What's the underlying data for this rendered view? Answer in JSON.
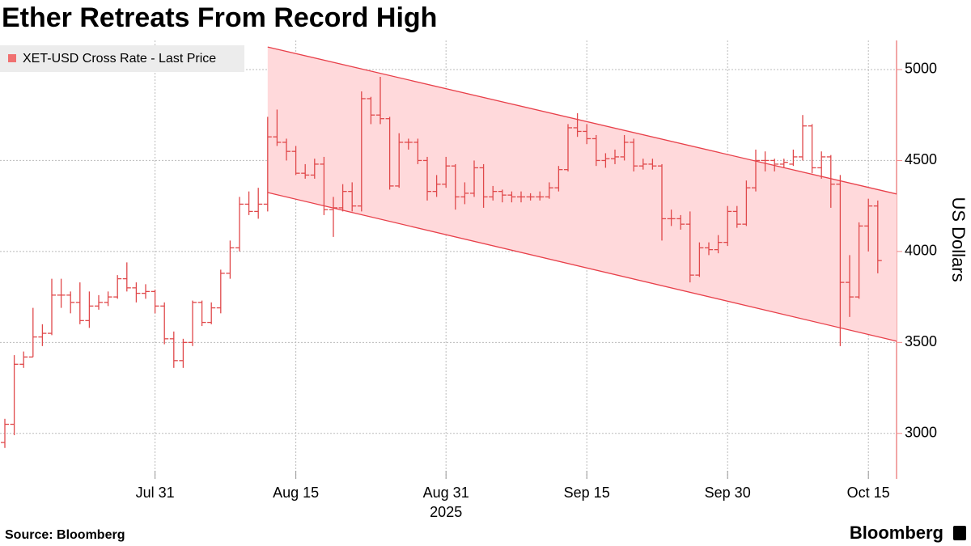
{
  "chart_data": {
    "type": "ohlc",
    "title": "Ether Retreats From Record High",
    "ylabel": "US Dollars",
    "year_label": "2025",
    "source": "Source: Bloomberg",
    "brand": "Bloomberg",
    "legend_position": "upper left",
    "grid": true,
    "xlim": [
      "2025-07-15",
      "2025-10-18"
    ],
    "xticks": [
      {
        "value": "2025-07-31",
        "label": "Jul 31"
      },
      {
        "value": "2025-08-15",
        "label": "Aug 15"
      },
      {
        "value": "2025-08-31",
        "label": "Aug 31"
      },
      {
        "value": "2025-09-15",
        "label": "Sep 15"
      },
      {
        "value": "2025-09-30",
        "label": "Sep 30"
      },
      {
        "value": "2025-10-15",
        "label": "Oct 15"
      }
    ],
    "ylim": [
      2750,
      5160
    ],
    "yticks": [
      3000,
      3500,
      4000,
      4500,
      5000
    ],
    "x": [
      "2025-07-15",
      "2025-07-16",
      "2025-07-17",
      "2025-07-18",
      "2025-07-19",
      "2025-07-20",
      "2025-07-21",
      "2025-07-22",
      "2025-07-23",
      "2025-07-24",
      "2025-07-25",
      "2025-07-26",
      "2025-07-27",
      "2025-07-28",
      "2025-07-29",
      "2025-07-30",
      "2025-07-31",
      "2025-08-01",
      "2025-08-02",
      "2025-08-03",
      "2025-08-04",
      "2025-08-05",
      "2025-08-06",
      "2025-08-07",
      "2025-08-08",
      "2025-08-09",
      "2025-08-10",
      "2025-08-11",
      "2025-08-12",
      "2025-08-13",
      "2025-08-14",
      "2025-08-15",
      "2025-08-16",
      "2025-08-17",
      "2025-08-18",
      "2025-08-19",
      "2025-08-20",
      "2025-08-21",
      "2025-08-22",
      "2025-08-23",
      "2025-08-24",
      "2025-08-25",
      "2025-08-26",
      "2025-08-27",
      "2025-08-28",
      "2025-08-29",
      "2025-08-30",
      "2025-08-31",
      "2025-09-01",
      "2025-09-02",
      "2025-09-03",
      "2025-09-04",
      "2025-09-05",
      "2025-09-06",
      "2025-09-07",
      "2025-09-08",
      "2025-09-09",
      "2025-09-10",
      "2025-09-11",
      "2025-09-12",
      "2025-09-13",
      "2025-09-14",
      "2025-09-15",
      "2025-09-16",
      "2025-09-17",
      "2025-09-18",
      "2025-09-19",
      "2025-09-20",
      "2025-09-21",
      "2025-09-22",
      "2025-09-23",
      "2025-09-24",
      "2025-09-25",
      "2025-09-26",
      "2025-09-27",
      "2025-09-28",
      "2025-09-29",
      "2025-09-30",
      "2025-10-01",
      "2025-10-02",
      "2025-10-03",
      "2025-10-04",
      "2025-10-05",
      "2025-10-06",
      "2025-10-07",
      "2025-10-08",
      "2025-10-09",
      "2025-10-10",
      "2025-10-11",
      "2025-10-12",
      "2025-10-13",
      "2025-10-14",
      "2025-10-15",
      "2025-10-16"
    ],
    "series": [
      {
        "name": "XET-USD Cross Rate - Last Price",
        "color": "#e0484a",
        "legend_color": "#f07070",
        "open": [
          2950,
          3050,
          3380,
          3420,
          3530,
          3550,
          3760,
          3760,
          3720,
          3620,
          3700,
          3720,
          3750,
          3850,
          3800,
          3770,
          3780,
          3700,
          3520,
          3400,
          3500,
          3720,
          3610,
          3690,
          3880,
          4020,
          4260,
          4220,
          4260,
          4630,
          4600,
          4550,
          4430,
          4420,
          4480,
          4230,
          4240,
          4330,
          4250,
          4840,
          4750,
          4730,
          4360,
          4600,
          4600,
          4500,
          4330,
          4370,
          4470,
          4300,
          4320,
          4460,
          4300,
          4330,
          4310,
          4300,
          4300,
          4300,
          4300,
          4350,
          4450,
          4680,
          4660,
          4620,
          4500,
          4510,
          4520,
          4600,
          4470,
          4480,
          4470,
          4180,
          4180,
          4150,
          3870,
          4020,
          4010,
          4050,
          4220,
          4150,
          4350,
          4500,
          4500,
          4480,
          4480,
          4520,
          4690,
          4460,
          4520,
          4370,
          3830,
          3750,
          4140,
          4250
        ],
        "high": [
          3080,
          3430,
          3450,
          3690,
          3600,
          3850,
          3850,
          3780,
          3830,
          3780,
          3760,
          3780,
          3870,
          3940,
          3830,
          3820,
          3790,
          3720,
          3560,
          3520,
          3730,
          3730,
          3720,
          3900,
          4060,
          4300,
          4330,
          4350,
          4740,
          4780,
          4620,
          4580,
          4480,
          4510,
          4520,
          4300,
          4370,
          4380,
          4880,
          4850,
          4960,
          4740,
          4650,
          4620,
          4620,
          4520,
          4420,
          4520,
          4480,
          4380,
          4500,
          4480,
          4360,
          4340,
          4330,
          4330,
          4320,
          4330,
          4380,
          4470,
          4700,
          4760,
          4700,
          4640,
          4540,
          4560,
          4640,
          4620,
          4510,
          4510,
          4480,
          4230,
          4200,
          4220,
          4050,
          4050,
          4090,
          4250,
          4250,
          4390,
          4560,
          4550,
          4510,
          4510,
          4560,
          4750,
          4700,
          4550,
          4530,
          4420,
          3980,
          4160,
          4290,
          4280
        ],
        "low": [
          2920,
          2990,
          3360,
          3420,
          3480,
          3540,
          3690,
          3660,
          3600,
          3580,
          3680,
          3700,
          3740,
          3780,
          3720,
          3740,
          3660,
          3490,
          3360,
          3360,
          3480,
          3590,
          3600,
          3660,
          3850,
          4000,
          4200,
          4180,
          4220,
          4580,
          4500,
          4420,
          4400,
          4400,
          4200,
          4080,
          4220,
          4220,
          4220,
          4700,
          4700,
          4340,
          4350,
          4560,
          4480,
          4280,
          4300,
          4350,
          4230,
          4260,
          4300,
          4240,
          4280,
          4270,
          4270,
          4270,
          4280,
          4280,
          4290,
          4330,
          4440,
          4630,
          4590,
          4470,
          4460,
          4480,
          4500,
          4440,
          4450,
          4450,
          4060,
          4140,
          4120,
          3830,
          3860,
          3980,
          3990,
          4030,
          4130,
          4140,
          4330,
          4440,
          4440,
          4460,
          4470,
          4500,
          4430,
          4400,
          4240,
          3480,
          3640,
          3740,
          4000,
          3880
        ],
        "close": [
          3050,
          3380,
          3420,
          3530,
          3550,
          3760,
          3760,
          3720,
          3620,
          3700,
          3720,
          3750,
          3850,
          3800,
          3770,
          3780,
          3700,
          3520,
          3400,
          3500,
          3720,
          3610,
          3690,
          3880,
          4020,
          4260,
          4220,
          4260,
          4630,
          4600,
          4550,
          4430,
          4420,
          4480,
          4230,
          4240,
          4330,
          4250,
          4840,
          4750,
          4730,
          4360,
          4600,
          4600,
          4500,
          4330,
          4370,
          4470,
          4300,
          4320,
          4460,
          4300,
          4330,
          4310,
          4300,
          4300,
          4300,
          4300,
          4350,
          4450,
          4680,
          4660,
          4620,
          4500,
          4510,
          4520,
          4600,
          4470,
          4480,
          4470,
          4180,
          4180,
          4150,
          3870,
          4020,
          4010,
          4050,
          4220,
          4150,
          4350,
          4500,
          4500,
          4480,
          4490,
          4520,
          4690,
          4460,
          4520,
          4370,
          3830,
          3750,
          4140,
          4250,
          3950
        ]
      }
    ],
    "channel": {
      "x": [
        "2025-08-12",
        "2025-10-18"
      ],
      "upper": [
        5124,
        4316
      ],
      "lower": [
        4324,
        3507
      ],
      "color": "#e8404a",
      "fill": "#ffd9db"
    }
  }
}
